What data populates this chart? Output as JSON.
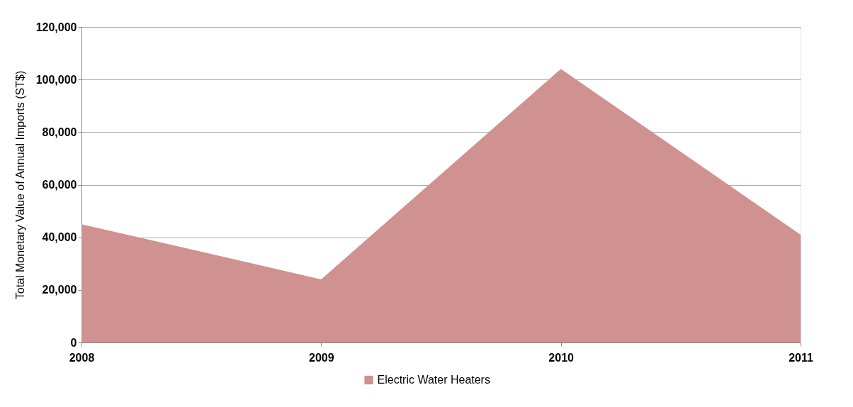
{
  "chart_data": {
    "type": "area",
    "ylabel": "Total Monetary Value of Annual Imports (ST$)",
    "categories": [
      "2008",
      "2009",
      "2010",
      "2011"
    ],
    "series": [
      {
        "name": "Electric Water Heaters",
        "color": "#d09191",
        "values": [
          45000,
          24000,
          104000,
          41000
        ]
      }
    ],
    "ylim": [
      0,
      120000
    ],
    "yticks": [
      0,
      {
        "value": 20000,
        "label": "20,000"
      },
      {
        "value": 40000,
        "label": "40,000"
      },
      {
        "value": 60000,
        "label": "60,000"
      },
      {
        "value": 80000,
        "label": "80,000"
      },
      {
        "value": 100000,
        "label": "100,000"
      },
      {
        "value": 120000,
        "label": "120,000"
      }
    ],
    "grid": "y",
    "legend": "bottom"
  }
}
